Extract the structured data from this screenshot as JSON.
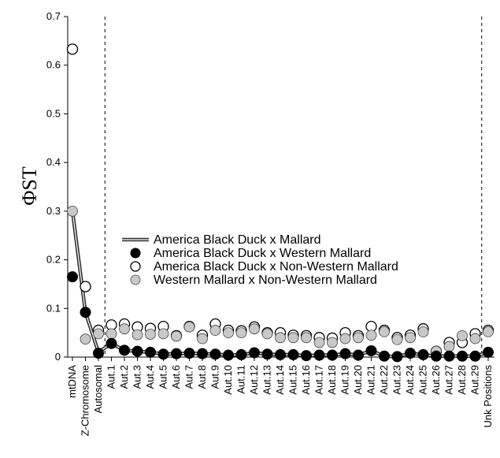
{
  "chart_data": {
    "type": "line",
    "ylabel": "ΦST",
    "ylim": [
      0,
      0.7
    ],
    "yticks": [
      "0",
      "0.1",
      "0.2",
      "0.3",
      "0.4",
      "0.5",
      "0.6",
      "0.7"
    ],
    "grid": false,
    "legend_position": "center",
    "categories": [
      "mtDNA",
      "Z-Chromosome",
      "Autosomal",
      "Aut.1",
      "Aut.2",
      "Aut.3",
      "Aut.4",
      "Aut.5",
      "Aut.6",
      "Aut.7",
      "Aut.8",
      "Aut.9",
      "Aut.10",
      "Aut.11",
      "Aut.12",
      "Aut.13",
      "Aut.14",
      "Aut.15",
      "Aut.16",
      "Aut.17",
      "Aut.18",
      "Aut.19",
      "Aut.20",
      "Aut.21",
      "Aut.22",
      "Aut.23",
      "Aut.24",
      "Aut.25",
      "Aut.26",
      "Aut.27",
      "Aut.28",
      "Aut.29",
      "Unk Positions"
    ],
    "visible_tick_labels": [
      "mtDNA",
      "Z-Chromosome",
      "Autosomal",
      "Aut.1",
      "Aut.2",
      "Aut.3",
      "Aut.4",
      "Aut.5",
      "Aut.6",
      "Aut.7",
      "Aut.8",
      "Aut.9",
      "Aut.10",
      "Aut.11",
      "Aut.12",
      "Aut.13",
      "Aut.14",
      "Aut.15",
      "Aut.16",
      "Aut.17",
      "Aut.18",
      "Aut.19",
      "Aut.20",
      "Aut.21",
      "Aut.22",
      "Aut.23",
      "Aut.24",
      "Aut.25",
      "Aut.26",
      "Aut.27",
      "Aut.28",
      "Aut.29",
      "Unk Positions"
    ],
    "separators_after": [
      "Autosomal",
      "Aut.29"
    ],
    "series": [
      {
        "name": "America Black Duck x Mallard",
        "style": "line",
        "color": "#333333",
        "values": [
          0.301,
          0.092,
          0.01,
          0.028,
          0.014,
          0.012,
          0.01,
          0.006,
          0.007,
          0.008,
          0.007,
          0.006,
          0.004,
          0.005,
          0.009,
          0.006,
          0.005,
          0.005,
          0.003,
          0.004,
          0.004,
          0.007,
          0.004,
          0.013,
          0.002,
          0.001,
          0.008,
          0.005,
          0.002,
          0.002,
          0.002,
          0.002,
          0.01
        ]
      },
      {
        "name": "America Black Duck x Western Mallard",
        "style": "filled-marker",
        "color": "#000000",
        "values": [
          0.165,
          0.092,
          0.008,
          0.028,
          0.014,
          0.012,
          0.01,
          0.006,
          0.007,
          0.008,
          0.007,
          0.006,
          0.004,
          0.005,
          0.009,
          0.006,
          0.005,
          0.005,
          0.003,
          0.004,
          0.004,
          0.007,
          0.004,
          0.013,
          0.002,
          0.001,
          0.008,
          0.005,
          0.002,
          0.002,
          0.002,
          0.002,
          0.01
        ]
      },
      {
        "name": "America Black Duck x Non-Western Mallard",
        "style": "open-marker",
        "color": "#ffffff",
        "values": [
          0.633,
          0.145,
          0.055,
          0.066,
          0.068,
          0.062,
          0.059,
          0.063,
          0.044,
          0.063,
          0.045,
          0.068,
          0.055,
          0.054,
          0.062,
          0.05,
          0.05,
          0.045,
          0.044,
          0.04,
          0.039,
          0.05,
          0.044,
          0.063,
          0.055,
          0.04,
          0.045,
          0.058,
          0.012,
          0.03,
          0.03,
          0.048,
          0.055
        ]
      },
      {
        "name": "Western Mallard x Non-Western Mallard",
        "style": "gray-marker",
        "color": "#c8c8c8",
        "values": [
          0.3,
          0.037,
          0.048,
          0.048,
          0.058,
          0.046,
          0.047,
          0.048,
          0.043,
          0.062,
          0.038,
          0.055,
          0.05,
          0.05,
          0.058,
          0.048,
          0.04,
          0.04,
          0.04,
          0.03,
          0.03,
          0.038,
          0.04,
          0.045,
          0.052,
          0.036,
          0.04,
          0.052,
          0.012,
          0.022,
          0.044,
          0.038,
          0.052
        ]
      }
    ]
  }
}
